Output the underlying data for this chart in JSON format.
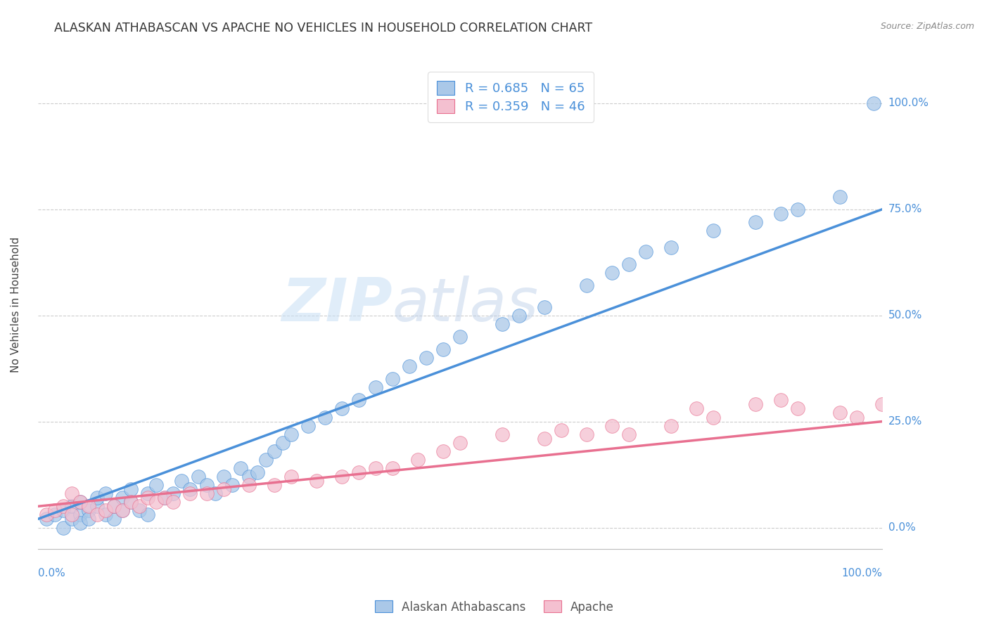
{
  "title": "ALASKAN ATHABASCAN VS APACHE NO VEHICLES IN HOUSEHOLD CORRELATION CHART",
  "source": "Source: ZipAtlas.com",
  "ylabel": "No Vehicles in Household",
  "ytick_labels": [
    "0.0%",
    "25.0%",
    "50.0%",
    "75.0%",
    "100.0%"
  ],
  "ytick_values": [
    0,
    25,
    50,
    75,
    100
  ],
  "xlim": [
    0,
    100
  ],
  "ylim": [
    -5,
    110
  ],
  "blue_R": 0.685,
  "blue_N": 65,
  "pink_R": 0.359,
  "pink_N": 46,
  "blue_color": "#aac8e8",
  "blue_line_color": "#4a90d9",
  "pink_color": "#f4c0d0",
  "pink_line_color": "#e87090",
  "legend_label_blue": "Alaskan Athabascans",
  "legend_label_pink": "Apache",
  "watermark_part1": "ZIP",
  "watermark_part2": "atlas",
  "blue_x": [
    1,
    2,
    3,
    3,
    4,
    4,
    5,
    5,
    5,
    6,
    6,
    7,
    7,
    8,
    8,
    9,
    9,
    10,
    10,
    11,
    11,
    12,
    13,
    13,
    14,
    15,
    16,
    17,
    18,
    19,
    20,
    21,
    22,
    23,
    24,
    25,
    26,
    27,
    28,
    29,
    30,
    32,
    34,
    36,
    38,
    40,
    42,
    44,
    46,
    48,
    50,
    55,
    57,
    60,
    65,
    68,
    70,
    72,
    75,
    80,
    85,
    88,
    90,
    95,
    99
  ],
  "blue_y": [
    2,
    3,
    4,
    0,
    2,
    5,
    3,
    1,
    6,
    4,
    2,
    5,
    7,
    3,
    8,
    2,
    5,
    4,
    7,
    6,
    9,
    4,
    8,
    3,
    10,
    7,
    8,
    11,
    9,
    12,
    10,
    8,
    12,
    10,
    14,
    12,
    13,
    16,
    18,
    20,
    22,
    24,
    26,
    28,
    30,
    33,
    35,
    38,
    40,
    42,
    45,
    48,
    50,
    52,
    57,
    60,
    62,
    65,
    66,
    70,
    72,
    74,
    75,
    78,
    100
  ],
  "pink_x": [
    1,
    2,
    3,
    4,
    4,
    5,
    6,
    7,
    8,
    9,
    10,
    11,
    12,
    13,
    14,
    15,
    16,
    18,
    20,
    22,
    25,
    28,
    30,
    33,
    36,
    38,
    40,
    42,
    45,
    48,
    50,
    55,
    60,
    62,
    65,
    68,
    70,
    75,
    78,
    80,
    85,
    88,
    90,
    95,
    97,
    100
  ],
  "pink_y": [
    3,
    4,
    5,
    3,
    8,
    6,
    5,
    3,
    4,
    5,
    4,
    6,
    5,
    7,
    6,
    7,
    6,
    8,
    8,
    9,
    10,
    10,
    12,
    11,
    12,
    13,
    14,
    14,
    16,
    18,
    20,
    22,
    21,
    23,
    22,
    24,
    22,
    24,
    28,
    26,
    29,
    30,
    28,
    27,
    26,
    29
  ],
  "blue_line_x0": 0,
  "blue_line_x1": 100,
  "blue_line_y0": 2,
  "blue_line_y1": 75,
  "pink_line_x0": 0,
  "pink_line_x1": 100,
  "pink_line_y0": 5,
  "pink_line_y1": 25
}
